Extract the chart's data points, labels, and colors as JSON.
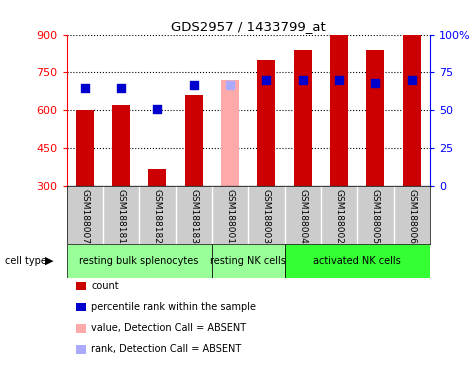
{
  "title": "GDS2957 / 1433799_at",
  "samples": [
    "GSM188007",
    "GSM188181",
    "GSM188182",
    "GSM188183",
    "GSM188001",
    "GSM188003",
    "GSM188004",
    "GSM188002",
    "GSM188005",
    "GSM188006"
  ],
  "count_values": [
    600,
    620,
    370,
    660,
    null,
    800,
    840,
    900,
    840,
    900
  ],
  "count_absent": [
    null,
    null,
    null,
    null,
    720,
    null,
    null,
    null,
    null,
    null
  ],
  "percentile_values": [
    65,
    65,
    51,
    67,
    null,
    70,
    70,
    70,
    68,
    70
  ],
  "percentile_absent": [
    null,
    null,
    null,
    null,
    67,
    null,
    null,
    null,
    null,
    null
  ],
  "ylim_left": [
    300,
    900
  ],
  "ylim_right": [
    0,
    100
  ],
  "yticks_left": [
    300,
    450,
    600,
    750,
    900
  ],
  "yticks_right": [
    0,
    25,
    50,
    75,
    100
  ],
  "ytick_labels_right": [
    "0",
    "25",
    "50",
    "75",
    "100%"
  ],
  "bar_color_present": "#cc0000",
  "bar_color_absent": "#ffaaaa",
  "dot_color_present": "#0000cc",
  "dot_color_absent": "#aaaaff",
  "bar_width": 0.5,
  "cell_type_groups": [
    {
      "label": "resting bulk splenocytes",
      "indices": [
        0,
        1,
        2,
        3
      ],
      "color": "#99ff99"
    },
    {
      "label": "resting NK cells",
      "indices": [
        4,
        5
      ],
      "color": "#99ff99"
    },
    {
      "label": "activated NK cells",
      "indices": [
        6,
        7,
        8,
        9
      ],
      "color": "#33ff33"
    }
  ],
  "legend_items": [
    {
      "label": "count",
      "color": "#cc0000"
    },
    {
      "label": "percentile rank within the sample",
      "color": "#0000cc"
    },
    {
      "label": "value, Detection Call = ABSENT",
      "color": "#ffaaaa"
    },
    {
      "label": "rank, Detection Call = ABSENT",
      "color": "#aaaaff"
    }
  ],
  "label_bg_color": "#cccccc",
  "grid_style": "dotted",
  "grid_color": "#000000"
}
